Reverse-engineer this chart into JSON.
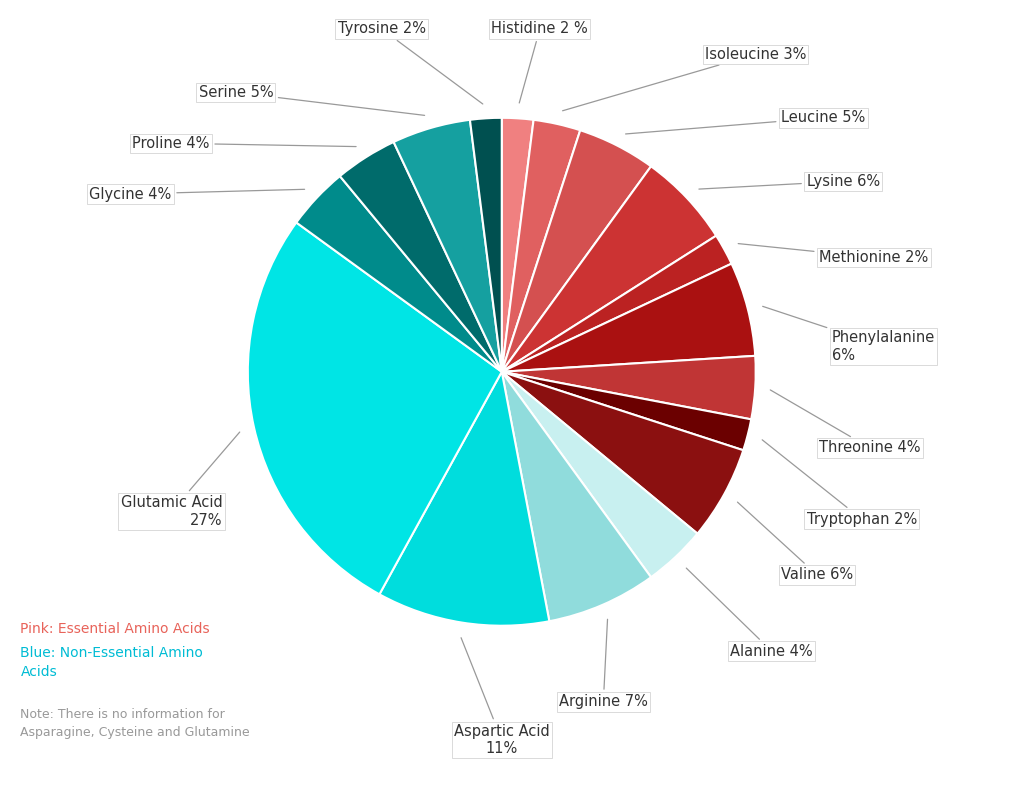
{
  "labels": [
    "Histidine 2 %",
    "Isoleucine 3%",
    "Leucine 5%",
    "Lysine 6%",
    "Methionine 2%",
    "Phenylalanine\n6%",
    "Threonine 4%",
    "Tryptophan 2%",
    "Valine 6%",
    "Alanine 4%",
    "Arginine 7%",
    "Aspartic Acid\n11%",
    "Glutamic Acid\n27%",
    "Glycine 4%",
    "Proline 4%",
    "Serine 5%",
    "Tyrosine 2%"
  ],
  "values": [
    2,
    3,
    5,
    6,
    2,
    6,
    4,
    2,
    6,
    4,
    7,
    11,
    27,
    4,
    4,
    5,
    2
  ],
  "colors": [
    "#F08080",
    "#E06060",
    "#D45050",
    "#CC3333",
    "#BB2222",
    "#AA1111",
    "#C03535",
    "#6B0000",
    "#8B1010",
    "#C8F0F0",
    "#90DCDC",
    "#00DDDD",
    "#00E5E5",
    "#008B8B",
    "#006B6B",
    "#15A0A0",
    "#005050"
  ],
  "note_line1": "Pink: Essential Amino Acids",
  "note_line2": "Blue: Non-Essential Amino\nAcids",
  "note_line3": "Note: There is no information for\nAsparagine, Cysteine and Glutamine",
  "pink_color": "#E8635A",
  "blue_color": "#00BCD4",
  "note_color": "#999999",
  "background_color": "#FFFFFF",
  "wedge_linecolor": "#FFFFFF",
  "wedge_linewidth": 1.5
}
